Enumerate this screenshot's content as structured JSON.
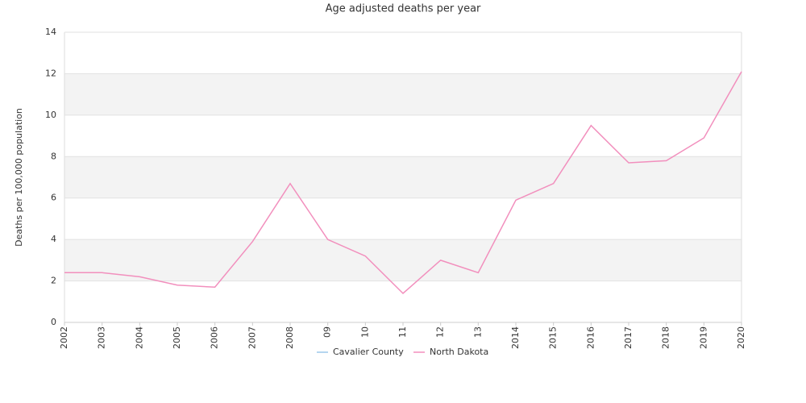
{
  "chart_data": {
    "type": "line",
    "title": "Age adjusted deaths per year",
    "y_label": "Deaths per 100,000 population",
    "categories": [
      "2002",
      "2003",
      "2004",
      "2005",
      "2006",
      "2007",
      "2008",
      "09",
      "10",
      "11",
      "12",
      "13",
      "2014",
      "2015",
      "2016",
      "2017",
      "2018",
      "2019",
      "2020"
    ],
    "series": [
      {
        "name": "Cavalier County",
        "color": "#9cc8ea",
        "values": [
          null,
          null,
          null,
          null,
          null,
          null,
          null,
          null,
          null,
          null,
          null,
          null,
          null,
          null,
          null,
          null,
          null,
          null,
          null
        ]
      },
      {
        "name": "North Dakota",
        "color": "#f28fbd",
        "values": [
          2.4,
          2.4,
          2.2,
          1.8,
          1.7,
          3.9,
          6.7,
          4.0,
          3.2,
          1.4,
          3.0,
          2.4,
          5.9,
          6.7,
          9.5,
          7.7,
          7.8,
          8.9,
          12.1
        ]
      }
    ],
    "ylim": [
      0,
      14
    ],
    "yticks": [
      0,
      2,
      4,
      6,
      8,
      10,
      12,
      14
    ],
    "grid": true,
    "legend": "bottom"
  }
}
